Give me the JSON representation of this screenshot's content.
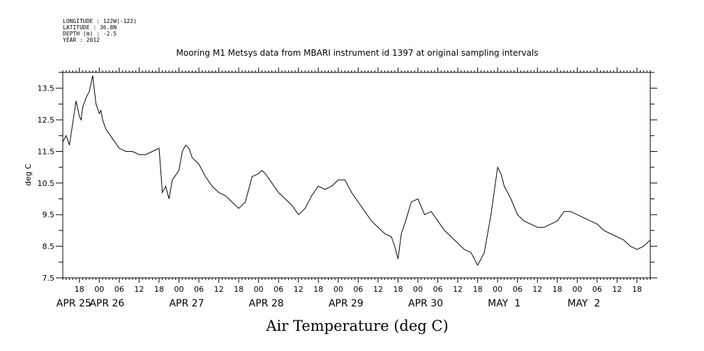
{
  "header": {
    "meta_lines": [
      "LONGITUDE : 122W(-122)",
      "LATITUDE : 36.8N",
      "DEPTH (m) : -2.5",
      "YEAR : 2012"
    ],
    "title": "Mooring M1 Metsys data from MBARI instrument id 1397 at original sampling intervals"
  },
  "chart_data": {
    "type": "line",
    "title": "Mooring M1 Metsys data from MBARI instrument id 1397 at original sampling intervals",
    "xlabel": "Air Temperature (deg C)",
    "ylabel": "deg C",
    "xlim": [
      "2012-04-25T13:00",
      "2012-05-02T22:00"
    ],
    "ylim": [
      7.5,
      14.0
    ],
    "y_ticks_labeled": [
      7.5,
      8.5,
      9.5,
      10.5,
      11.5,
      12.5,
      13.5
    ],
    "y_minor_step": 0.5,
    "x_hour_tick_labels": [
      "18",
      "00",
      "06",
      "12",
      "18",
      "00",
      "06",
      "12",
      "18",
      "00",
      "06",
      "12",
      "18",
      "00",
      "06",
      "12",
      "18",
      "00",
      "06",
      "12",
      "18",
      "00",
      "06",
      "12",
      "18",
      "00",
      "06",
      "12",
      "18",
      "00",
      "06",
      "12"
    ],
    "x_day_labels": [
      "APR 25",
      "APR 26",
      "APR 27",
      "APR 28",
      "APR 29",
      "APR 30",
      "MAY  1",
      "MAY  2"
    ],
    "grid": false,
    "legend": "none",
    "line_color": "#000000",
    "series": [
      {
        "x": [
          "2012-04-25T13:00",
          "2012-04-25T14:00",
          "2012-04-25T15:00",
          "2012-04-25T16:00",
          "2012-04-25T17:00",
          "2012-04-25T18:00",
          "2012-04-25T18:30",
          "2012-04-25T19:00",
          "2012-04-25T20:00",
          "2012-04-25T21:00",
          "2012-04-25T22:00",
          "2012-04-25T23:00",
          "2012-04-26T00:00",
          "2012-04-26T00:30",
          "2012-04-26T01:00",
          "2012-04-26T02:00",
          "2012-04-26T04:00",
          "2012-04-26T06:00",
          "2012-04-26T08:00",
          "2012-04-26T10:00",
          "2012-04-26T12:00",
          "2012-04-26T14:00",
          "2012-04-26T16:00",
          "2012-04-26T18:00",
          "2012-04-26T19:00",
          "2012-04-26T20:00",
          "2012-04-26T21:00",
          "2012-04-26T22:00",
          "2012-04-27T00:00",
          "2012-04-27T01:00",
          "2012-04-27T02:00",
          "2012-04-27T03:00",
          "2012-04-27T04:00",
          "2012-04-27T06:00",
          "2012-04-27T08:00",
          "2012-04-27T10:00",
          "2012-04-27T12:00",
          "2012-04-27T14:00",
          "2012-04-27T16:00",
          "2012-04-27T18:00",
          "2012-04-27T20:00",
          "2012-04-27T22:00",
          "2012-04-28T00:00",
          "2012-04-28T01:00",
          "2012-04-28T02:00",
          "2012-04-28T04:00",
          "2012-04-28T06:00",
          "2012-04-28T08:00",
          "2012-04-28T10:00",
          "2012-04-28T12:00",
          "2012-04-28T14:00",
          "2012-04-28T16:00",
          "2012-04-28T18:00",
          "2012-04-28T20:00",
          "2012-04-28T22:00",
          "2012-04-29T00:00",
          "2012-04-29T02:00",
          "2012-04-29T04:00",
          "2012-04-29T06:00",
          "2012-04-29T08:00",
          "2012-04-29T10:00",
          "2012-04-29T12:00",
          "2012-04-29T14:00",
          "2012-04-29T16:00",
          "2012-04-29T17:00",
          "2012-04-29T18:00",
          "2012-04-29T19:00",
          "2012-04-29T20:00",
          "2012-04-29T22:00",
          "2012-04-30T00:00",
          "2012-04-30T02:00",
          "2012-04-30T04:00",
          "2012-04-30T06:00",
          "2012-04-30T08:00",
          "2012-04-30T10:00",
          "2012-04-30T12:00",
          "2012-04-30T14:00",
          "2012-04-30T16:00",
          "2012-04-30T18:00",
          "2012-04-30T20:00",
          "2012-04-30T22:00",
          "2012-05-01T00:00",
          "2012-05-01T01:00",
          "2012-05-01T02:00",
          "2012-05-01T04:00",
          "2012-05-01T06:00",
          "2012-05-01T08:00",
          "2012-05-01T10:00",
          "2012-05-01T12:00",
          "2012-05-01T14:00",
          "2012-05-01T16:00",
          "2012-05-01T18:00",
          "2012-05-01T20:00",
          "2012-05-01T22:00",
          "2012-05-02T00:00",
          "2012-05-02T02:00",
          "2012-05-02T04:00",
          "2012-05-02T06:00",
          "2012-05-02T08:00",
          "2012-05-02T10:00",
          "2012-05-02T12:00",
          "2012-05-02T14:00",
          "2012-05-02T16:00",
          "2012-05-02T18:00",
          "2012-05-02T20:00",
          "2012-05-02T22:00"
        ],
        "y": [
          11.8,
          12.0,
          11.7,
          12.4,
          13.1,
          12.6,
          12.5,
          12.9,
          13.2,
          13.4,
          13.9,
          13.0,
          12.7,
          12.8,
          12.5,
          12.2,
          11.9,
          11.6,
          11.5,
          11.5,
          11.4,
          11.4,
          11.5,
          11.6,
          10.2,
          10.4,
          10.0,
          10.6,
          10.9,
          11.5,
          11.7,
          11.6,
          11.3,
          11.1,
          10.7,
          10.4,
          10.2,
          10.1,
          9.9,
          9.7,
          9.9,
          10.7,
          10.8,
          10.9,
          10.8,
          10.5,
          10.2,
          10.0,
          9.8,
          9.5,
          9.7,
          10.1,
          10.4,
          10.3,
          10.4,
          10.6,
          10.6,
          10.2,
          9.9,
          9.6,
          9.3,
          9.1,
          8.9,
          8.8,
          8.5,
          8.1,
          8.9,
          9.2,
          9.9,
          10.0,
          9.5,
          9.6,
          9.3,
          9.0,
          8.8,
          8.6,
          8.4,
          8.3,
          7.9,
          8.3,
          9.5,
          11.0,
          10.8,
          10.4,
          10.0,
          9.5,
          9.3,
          9.2,
          9.1,
          9.1,
          9.2,
          9.3,
          9.6,
          9.6,
          9.5,
          9.4,
          9.3,
          9.2,
          9.0,
          8.9,
          8.8,
          8.7,
          8.5,
          8.4,
          8.5,
          8.7
        ]
      }
    ]
  }
}
